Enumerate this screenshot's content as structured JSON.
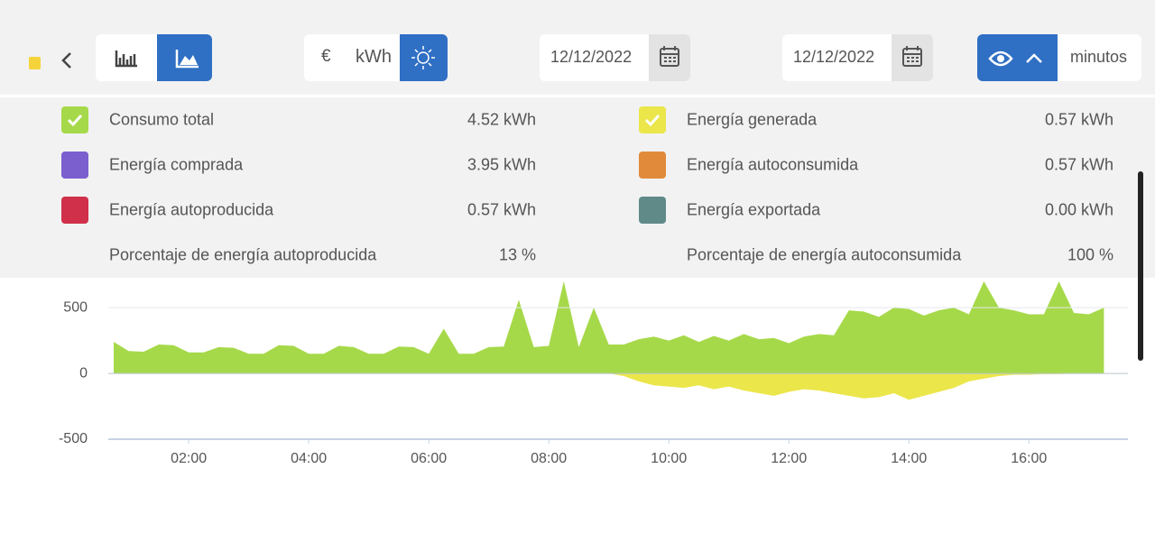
{
  "toolbar": {
    "currency": "€",
    "unit": "kWh",
    "date_from": "12/12/2022",
    "date_to": "12/12/2022",
    "interval": "minutos"
  },
  "legend": {
    "items": [
      {
        "label": "Consumo total",
        "value": "4.52 kWh",
        "color": "#a6d94a",
        "checked": true
      },
      {
        "label": "Energía generada",
        "value": "0.57 kWh",
        "color": "#ebe64a",
        "checked": true
      },
      {
        "label": "Energía comprada",
        "value": "3.95 kWh",
        "color": "#7b5fcf",
        "checked": false
      },
      {
        "label": "Energía autoconsumida",
        "value": "0.57 kWh",
        "color": "#e08a3a",
        "checked": false
      },
      {
        "label": "Energía autoproducida",
        "value": "0.57 kWh",
        "color": "#d0304a",
        "checked": false
      },
      {
        "label": "Energía exportada",
        "value": "0.00 kWh",
        "color": "#5f8a88",
        "checked": false
      }
    ],
    "percentages": [
      {
        "label": "Porcentaje de energía autoproducida",
        "value": "13 %"
      },
      {
        "label": "Porcentaje de energía autoconsumida",
        "value": "100 %"
      }
    ]
  },
  "chart_data": {
    "type": "area",
    "x": [
      0.75,
      1,
      1.25,
      1.5,
      1.75,
      2,
      2.25,
      2.5,
      2.75,
      3,
      3.25,
      3.5,
      3.75,
      4,
      4.25,
      4.5,
      4.75,
      5,
      5.25,
      5.5,
      5.75,
      6,
      6.25,
      6.5,
      6.75,
      7,
      7.25,
      7.5,
      7.75,
      8,
      8.25,
      8.5,
      8.75,
      9,
      9.25,
      9.5,
      9.75,
      10,
      10.25,
      10.5,
      10.75,
      11,
      11.25,
      11.5,
      11.75,
      12,
      12.25,
      12.5,
      12.75,
      13,
      13.25,
      13.5,
      13.75,
      14,
      14.25,
      14.5,
      14.75,
      15,
      15.25,
      15.5,
      15.75,
      16,
      16.25,
      16.5,
      16.75,
      17,
      17.25
    ],
    "series": [
      {
        "name": "Consumo total",
        "color": "#a6d94a",
        "values": [
          240,
          170,
          165,
          220,
          215,
          160,
          160,
          200,
          195,
          150,
          150,
          215,
          210,
          150,
          150,
          210,
          200,
          150,
          150,
          205,
          200,
          150,
          340,
          150,
          150,
          200,
          205,
          560,
          200,
          210,
          700,
          200,
          500,
          220,
          220,
          260,
          280,
          250,
          290,
          240,
          285,
          250,
          300,
          260,
          270,
          230,
          280,
          300,
          290,
          480,
          470,
          430,
          500,
          490,
          440,
          480,
          500,
          450,
          700,
          500,
          480,
          450,
          450,
          700,
          460,
          450,
          500
        ]
      },
      {
        "name": "Energía generada",
        "color": "#ebe64a",
        "values": [
          0,
          0,
          0,
          0,
          0,
          0,
          0,
          0,
          0,
          0,
          0,
          0,
          0,
          0,
          0,
          0,
          0,
          0,
          0,
          0,
          0,
          0,
          0,
          0,
          0,
          0,
          0,
          0,
          0,
          0,
          0,
          0,
          0,
          0,
          -20,
          -60,
          -90,
          -100,
          -110,
          -90,
          -120,
          -100,
          -130,
          -150,
          -170,
          -140,
          -120,
          -130,
          -150,
          -170,
          -190,
          -180,
          -150,
          -200,
          -170,
          -140,
          -110,
          -60,
          -40,
          -20,
          -10,
          -10,
          -5,
          -5,
          0,
          0,
          0
        ]
      }
    ],
    "xlim": [
      0.66,
      17.65
    ],
    "xticks": [
      {
        "value": 2,
        "label": "02:00"
      },
      {
        "value": 4,
        "label": "04:00"
      },
      {
        "value": 6,
        "label": "06:00"
      },
      {
        "value": 8,
        "label": "08:00"
      },
      {
        "value": 10,
        "label": "10:00"
      },
      {
        "value": 12,
        "label": "12:00"
      },
      {
        "value": 14,
        "label": "14:00"
      },
      {
        "value": 16,
        "label": "16:00"
      }
    ],
    "ylim": [
      -500,
      700
    ],
    "yticks": [
      -500,
      0,
      500
    ],
    "grid": true
  }
}
